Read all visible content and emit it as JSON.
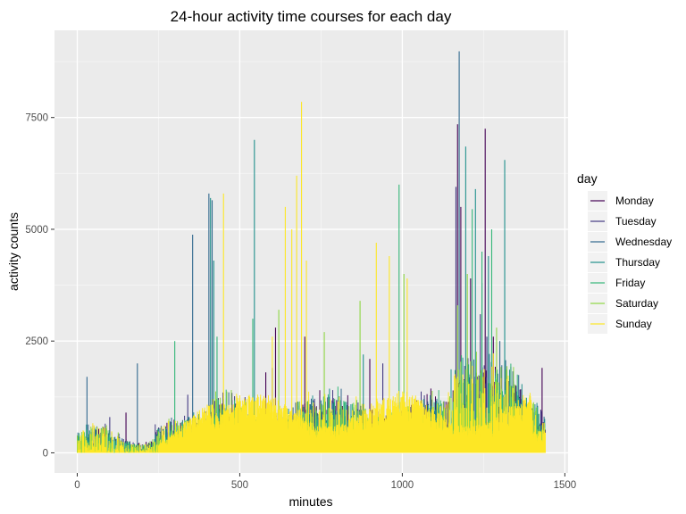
{
  "chart_data": {
    "type": "line",
    "title": "24-hour activity time courses for each day",
    "xlabel": "minutes",
    "ylabel": "activity counts",
    "xlim": [
      -70,
      1510
    ],
    "ylim": [
      -450,
      9450
    ],
    "xticks": [
      0,
      500,
      1000,
      1500
    ],
    "yticks": [
      0,
      2500,
      5000,
      7500
    ],
    "xtick_labels": [
      "0",
      "500",
      "1000",
      "1500"
    ],
    "ytick_labels": [
      "0",
      "2500",
      "5000",
      "7500"
    ],
    "grid": true,
    "legend": {
      "title": "day",
      "position": "right"
    },
    "series": [
      {
        "name": "Monday",
        "color": "#440154",
        "peaks": [
          [
            150,
            900
          ],
          [
            580,
            1800
          ],
          [
            610,
            2800
          ],
          [
            700,
            2600
          ],
          [
            900,
            2100
          ],
          [
            1170,
            7350
          ],
          [
            1180,
            5500
          ],
          [
            1210,
            3900
          ],
          [
            1255,
            7250
          ],
          [
            1280,
            2600
          ],
          [
            1430,
            1900
          ]
        ]
      },
      {
        "name": "Tuesday",
        "color": "#443A83",
        "peaks": [
          [
            100,
            800
          ],
          [
            340,
            1300
          ],
          [
            600,
            1900
          ],
          [
            940,
            2000
          ],
          [
            1165,
            5950
          ],
          [
            1240,
            3100
          ],
          [
            1260,
            2600
          ],
          [
            1350,
            1500
          ]
        ]
      },
      {
        "name": "Wednesday",
        "color": "#31688E",
        "peaks": [
          [
            30,
            1700
          ],
          [
            185,
            2000
          ],
          [
            355,
            4880
          ],
          [
            405,
            5800
          ],
          [
            415,
            5650
          ],
          [
            1175,
            8980
          ],
          [
            1245,
            3800
          ],
          [
            1300,
            2500
          ]
        ]
      },
      {
        "name": "Thursday",
        "color": "#21908C",
        "peaks": [
          [
            410,
            5700
          ],
          [
            420,
            4300
          ],
          [
            545,
            7000
          ],
          [
            880,
            2200
          ],
          [
            1195,
            6850
          ],
          [
            1225,
            5900
          ],
          [
            1265,
            4400
          ],
          [
            1315,
            6550
          ]
        ]
      },
      {
        "name": "Friday",
        "color": "#35B779",
        "peaks": [
          [
            300,
            2500
          ],
          [
            430,
            2600
          ],
          [
            540,
            3000
          ],
          [
            990,
            6000
          ],
          [
            1215,
            5450
          ],
          [
            1245,
            4500
          ],
          [
            1275,
            5000
          ]
        ]
      },
      {
        "name": "Saturday",
        "color": "#8FD744",
        "peaks": [
          [
            620,
            3200
          ],
          [
            760,
            2700
          ],
          [
            870,
            3400
          ],
          [
            1005,
            4000
          ],
          [
            1170,
            3300
          ],
          [
            1200,
            4000
          ],
          [
            1290,
            2800
          ]
        ]
      },
      {
        "name": "Sunday",
        "color": "#FDE725",
        "peaks": [
          [
            450,
            5800
          ],
          [
            640,
            5500
          ],
          [
            660,
            5000
          ],
          [
            675,
            6200
          ],
          [
            690,
            7850
          ],
          [
            705,
            4300
          ],
          [
            920,
            4700
          ],
          [
            960,
            4400
          ],
          [
            1015,
            3900
          ],
          [
            600,
            2600
          ]
        ]
      }
    ]
  }
}
